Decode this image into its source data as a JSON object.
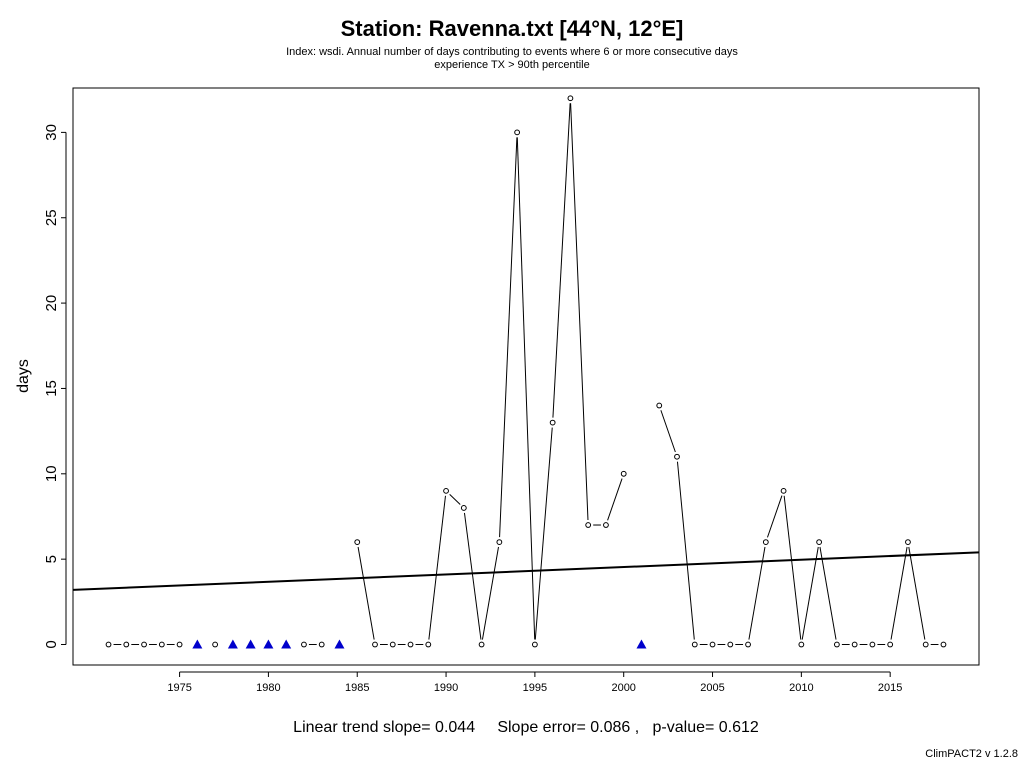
{
  "chart_data": {
    "type": "line",
    "title": "Station: Ravenna.txt [44°N, 12°E]",
    "subtitle_lines": [
      "Index: wsdi. Annual number of days contributing to events where 6 or more consecutive days",
      "experience TX > 90th percentile"
    ],
    "xlabel": "",
    "ylabel": "days",
    "xlim": [
      1969,
      2020
    ],
    "ylim": [
      -1.2,
      32.6
    ],
    "x_ticks": [
      1975,
      1980,
      1985,
      1990,
      1995,
      2000,
      2005,
      2010,
      2015
    ],
    "y_ticks": [
      0,
      5,
      10,
      15,
      20,
      25,
      30
    ],
    "grid": false,
    "legend": "none",
    "series": [
      {
        "x": [
          1971,
          1972,
          1973,
          1974,
          1975,
          1976,
          1977,
          1978,
          1979,
          1980,
          1981,
          1982,
          1983,
          1984,
          1985,
          1986,
          1987,
          1988,
          1989,
          1990,
          1991,
          1992,
          1993,
          1994,
          1995,
          1996,
          1997,
          1998,
          1999,
          2000,
          2001,
          2002,
          2003,
          2004,
          2005,
          2006,
          2007,
          2008,
          2009,
          2010,
          2011,
          2012,
          2013,
          2014,
          2015,
          2016,
          2017,
          2018
        ],
        "values": [
          0,
          0,
          0,
          0,
          0,
          null,
          0,
          null,
          null,
          null,
          null,
          0,
          0,
          null,
          6,
          0,
          0,
          0,
          0,
          9,
          8,
          0,
          6,
          30,
          0,
          13,
          32,
          7,
          7,
          10,
          null,
          14,
          11,
          0,
          0,
          0,
          0,
          6,
          9,
          0,
          6,
          0,
          0,
          0,
          0,
          6,
          0,
          0
        ]
      }
    ],
    "missing_years": [
      1976,
      1978,
      1979,
      1980,
      1981,
      1984,
      2001
    ],
    "trend": {
      "slope": 0.044,
      "y_start": 3.2,
      "y_end": 5.4
    },
    "colors": {
      "line": "#000000",
      "missing_marker": "#0000cc"
    }
  },
  "footer": {
    "stats": "Linear trend slope= 0.044     Slope error= 0.086 ,   p-value= 0.612",
    "version": "ClimPACT2 v 1.2.8"
  }
}
